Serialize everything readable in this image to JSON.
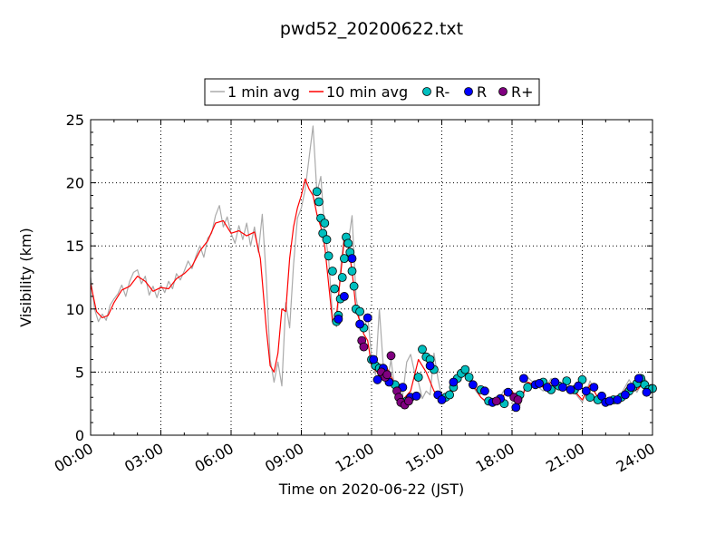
{
  "chart_data": {
    "type": "line",
    "title": "pwd52_20200622.txt",
    "xlabel": "Time on 2020-06-22 (JST)",
    "ylabel": "Visibility (km)",
    "xlim": [
      "00:00",
      "24:00"
    ],
    "ylim": [
      0,
      25
    ],
    "grid": true,
    "legend_position": "top-center",
    "x_ticks": [
      "00:00",
      "03:00",
      "06:00",
      "09:00",
      "12:00",
      "15:00",
      "18:00",
      "21:00",
      "24:00"
    ],
    "y_ticks": [
      "0",
      "5",
      "10",
      "15",
      "20",
      "25"
    ],
    "legend": [
      {
        "label": "1 min avg",
        "kind": "line",
        "color": "#aaaaaa"
      },
      {
        "label": "10 min avg",
        "kind": "line",
        "color": "#ff0000"
      },
      {
        "label": "R-",
        "kind": "marker",
        "color": "#00bfbf"
      },
      {
        "label": "R",
        "kind": "marker",
        "color": "#0000ff"
      },
      {
        "label": "R+",
        "kind": "marker",
        "color": "#800080"
      }
    ],
    "series": [
      {
        "name": "10 min avg",
        "color": "#ff0000",
        "x": [
          "00:00",
          "00:15",
          "00:30",
          "00:45",
          "01:00",
          "01:20",
          "01:40",
          "02:00",
          "02:20",
          "02:40",
          "03:00",
          "03:20",
          "03:40",
          "04:00",
          "04:20",
          "04:40",
          "05:00",
          "05:20",
          "05:40",
          "06:00",
          "06:20",
          "06:40",
          "07:00",
          "07:15",
          "07:30",
          "07:40",
          "07:50",
          "08:00",
          "08:10",
          "08:20",
          "08:30",
          "08:40",
          "08:50",
          "09:00",
          "09:10",
          "09:20",
          "09:30",
          "09:40",
          "09:50",
          "10:00",
          "10:10",
          "10:20",
          "10:30",
          "10:40",
          "10:50",
          "11:00",
          "11:10",
          "11:20",
          "11:30",
          "11:40",
          "11:50",
          "12:00",
          "12:20",
          "12:40",
          "13:00",
          "13:20",
          "13:40",
          "14:00",
          "14:20",
          "14:40",
          "15:00",
          "15:20",
          "15:40",
          "16:00",
          "16:20",
          "16:40",
          "17:00",
          "17:20",
          "17:40",
          "18:00",
          "18:20",
          "18:40",
          "19:00",
          "19:20",
          "19:40",
          "20:00",
          "20:20",
          "20:40",
          "21:00",
          "21:20",
          "21:40",
          "22:00",
          "22:20",
          "22:40",
          "23:00",
          "23:20",
          "23:40",
          "24:00"
        ],
        "y": [
          12.0,
          9.8,
          9.3,
          9.5,
          10.5,
          11.5,
          11.8,
          12.6,
          12.2,
          11.4,
          11.7,
          11.6,
          12.4,
          12.8,
          13.4,
          14.6,
          15.4,
          16.8,
          17.0,
          16.0,
          16.2,
          15.8,
          16.1,
          14.0,
          8.5,
          5.5,
          5.0,
          6.5,
          10.0,
          9.8,
          14.0,
          16.5,
          18.0,
          19.0,
          20.3,
          19.5,
          19.0,
          17.5,
          16.5,
          15.0,
          12.0,
          9.0,
          9.5,
          12.5,
          15.5,
          15.0,
          13.0,
          10.0,
          9.0,
          8.0,
          7.5,
          5.5,
          4.8,
          5.3,
          4.0,
          2.8,
          3.5,
          6.0,
          5.0,
          3.5,
          3.0,
          3.5,
          4.5,
          5.0,
          4.0,
          3.0,
          2.5,
          2.6,
          3.2,
          3.5,
          2.5,
          4.2,
          4.0,
          3.8,
          4.2,
          3.9,
          3.8,
          3.5,
          2.8,
          4.0,
          3.0,
          2.8,
          2.8,
          3.2,
          4.0,
          3.6,
          4.2,
          3.5
        ]
      },
      {
        "name": "1 min avg",
        "color": "#aaaaaa",
        "x": [
          "00:00",
          "00:10",
          "00:20",
          "00:30",
          "00:40",
          "00:50",
          "01:00",
          "01:10",
          "01:20",
          "01:30",
          "01:40",
          "01:50",
          "02:00",
          "02:10",
          "02:20",
          "02:30",
          "02:40",
          "02:50",
          "03:00",
          "03:10",
          "03:20",
          "03:30",
          "03:40",
          "03:50",
          "04:00",
          "04:10",
          "04:20",
          "04:30",
          "04:40",
          "04:50",
          "05:00",
          "05:10",
          "05:20",
          "05:30",
          "05:40",
          "05:50",
          "06:00",
          "06:10",
          "06:20",
          "06:30",
          "06:40",
          "06:50",
          "07:00",
          "07:10",
          "07:20",
          "07:30",
          "07:40",
          "07:50",
          "08:00",
          "08:10",
          "08:20",
          "08:30",
          "08:40",
          "08:50",
          "09:00",
          "09:10",
          "09:20",
          "09:30",
          "09:40",
          "09:50",
          "10:00",
          "10:10",
          "10:20",
          "10:30",
          "10:40",
          "10:50",
          "11:00",
          "11:10",
          "11:20",
          "11:30",
          "11:40",
          "11:50",
          "12:00",
          "12:10",
          "12:20",
          "12:30",
          "12:40",
          "12:50",
          "13:00",
          "13:10",
          "13:20",
          "13:30",
          "13:40",
          "13:50",
          "14:00",
          "14:10",
          "14:20",
          "14:30",
          "14:40",
          "14:50",
          "15:00",
          "15:20",
          "15:40",
          "16:00",
          "16:20",
          "16:40",
          "17:00",
          "17:20",
          "17:40",
          "18:00",
          "18:20",
          "18:40",
          "19:00",
          "19:20",
          "19:40",
          "20:00",
          "20:20",
          "20:40",
          "21:00",
          "21:20",
          "21:40",
          "22:00",
          "22:20",
          "22:40",
          "23:00",
          "23:20",
          "23:40",
          "24:00"
        ],
        "y": [
          12.5,
          10.0,
          9.0,
          9.6,
          9.1,
          10.3,
          10.8,
          11.2,
          11.9,
          11.0,
          12.2,
          12.9,
          13.1,
          12.0,
          12.6,
          11.1,
          11.8,
          10.9,
          11.9,
          11.3,
          12.2,
          11.6,
          12.8,
          12.3,
          13.0,
          13.8,
          13.2,
          14.2,
          15.0,
          14.1,
          15.6,
          16.0,
          17.4,
          18.2,
          16.5,
          17.3,
          16.0,
          15.2,
          16.6,
          15.5,
          16.8,
          15.0,
          16.5,
          14.5,
          17.5,
          12.5,
          6.0,
          4.2,
          5.8,
          3.9,
          10.5,
          8.5,
          13.5,
          17.2,
          18.0,
          19.5,
          22.0,
          24.5,
          19.2,
          20.5,
          16.2,
          14.0,
          9.5,
          8.6,
          13.0,
          16.0,
          15.2,
          17.4,
          11.0,
          9.0,
          8.2,
          9.5,
          6.2,
          4.8,
          10.0,
          5.5,
          4.1,
          6.0,
          3.5,
          2.5,
          3.2,
          5.8,
          6.4,
          5.0,
          4.2,
          2.9,
          3.5,
          3.2,
          6.5,
          4.5,
          3.0,
          3.2,
          4.8,
          5.5,
          3.8,
          3.0,
          2.4,
          2.5,
          3.6,
          3.5,
          2.3,
          4.6,
          4.0,
          3.5,
          4.5,
          3.7,
          4.2,
          3.4,
          2.6,
          4.3,
          2.9,
          2.7,
          2.9,
          3.3,
          4.4,
          3.4,
          4.5,
          3.6
        ]
      },
      {
        "name": "R-",
        "kind": "markers",
        "color": "#00bfbf",
        "x": [
          "09:40",
          "09:45",
          "09:50",
          "09:55",
          "10:00",
          "10:05",
          "10:10",
          "10:20",
          "10:25",
          "10:30",
          "10:35",
          "10:40",
          "10:45",
          "10:50",
          "10:55",
          "11:00",
          "11:05",
          "11:10",
          "11:15",
          "11:20",
          "11:30",
          "11:40",
          "12:00",
          "12:10",
          "12:20",
          "13:00",
          "13:30",
          "14:00",
          "14:10",
          "14:20",
          "14:30",
          "14:40",
          "15:10",
          "15:20",
          "15:30",
          "15:40",
          "15:50",
          "16:00",
          "16:10",
          "16:40",
          "17:00",
          "17:40",
          "18:20",
          "18:40",
          "19:20",
          "19:40",
          "20:00",
          "20:20",
          "20:40",
          "21:00",
          "21:20",
          "21:40",
          "22:20",
          "22:40",
          "23:00",
          "23:10",
          "23:20",
          "23:30",
          "23:40",
          "23:50",
          "24:00"
        ],
        "y": [
          19.3,
          18.5,
          17.2,
          16.0,
          16.8,
          15.5,
          14.2,
          13.0,
          11.6,
          9.0,
          9.5,
          10.8,
          12.5,
          14.0,
          15.7,
          15.2,
          14.5,
          13.0,
          11.8,
          10.0,
          9.8,
          8.5,
          6.0,
          5.5,
          5.3,
          4.0,
          2.7,
          4.6,
          6.8,
          6.2,
          6.0,
          5.2,
          3.0,
          3.2,
          3.8,
          4.5,
          4.9,
          5.2,
          4.6,
          3.6,
          2.7,
          2.5,
          3.2,
          3.8,
          4.2,
          3.6,
          3.9,
          4.3,
          3.6,
          4.4,
          3.0,
          2.8,
          2.8,
          3.0,
          3.5,
          3.8,
          4.1,
          4.5,
          4.0,
          3.6,
          3.7
        ]
      },
      {
        "name": "R",
        "kind": "markers",
        "color": "#0000ff",
        "x": [
          "10:35",
          "10:50",
          "11:10",
          "11:30",
          "11:50",
          "12:05",
          "12:15",
          "12:30",
          "12:45",
          "13:20",
          "13:40",
          "13:55",
          "14:30",
          "14:50",
          "15:00",
          "15:30",
          "16:20",
          "16:50",
          "17:10",
          "17:30",
          "17:50",
          "18:10",
          "18:30",
          "19:00",
          "19:10",
          "19:30",
          "19:50",
          "20:10",
          "20:30",
          "20:50",
          "21:10",
          "21:30",
          "21:50",
          "22:00",
          "22:10",
          "22:30",
          "22:50",
          "23:05",
          "23:25",
          "23:45"
        ],
        "y": [
          9.2,
          11.0,
          14.0,
          8.8,
          9.3,
          6.0,
          4.4,
          5.3,
          4.2,
          3.8,
          3.0,
          3.1,
          5.5,
          3.2,
          2.8,
          4.2,
          4.0,
          3.5,
          2.6,
          2.9,
          3.4,
          2.2,
          4.5,
          4.0,
          4.1,
          3.8,
          4.2,
          3.8,
          3.6,
          3.9,
          3.5,
          3.8,
          3.1,
          2.6,
          2.7,
          2.8,
          3.2,
          3.8,
          4.5,
          3.4
        ]
      },
      {
        "name": "R+",
        "kind": "markers",
        "color": "#800080",
        "x": [
          "11:35",
          "11:40",
          "12:25",
          "12:35",
          "12:40",
          "12:50",
          "13:05",
          "13:10",
          "13:15",
          "13:25",
          "13:35",
          "17:20",
          "18:05",
          "18:15"
        ],
        "y": [
          7.5,
          7.0,
          5.0,
          4.6,
          4.8,
          6.3,
          3.5,
          3.0,
          2.6,
          2.4,
          2.7,
          2.7,
          3.0,
          2.8
        ]
      }
    ]
  }
}
